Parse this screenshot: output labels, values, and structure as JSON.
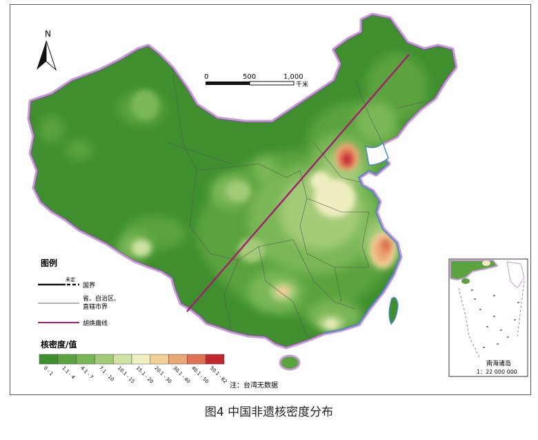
{
  "north_label": "N",
  "scale_bar": {
    "ticks": [
      "0",
      "500",
      "1,000"
    ],
    "unit": "千米"
  },
  "legend": {
    "title": "图例",
    "items": [
      {
        "label": "国界",
        "sub_label": "未定"
      },
      {
        "label": "省、自治区、",
        "label2": "直辖市界"
      },
      {
        "label": "胡焕庸线"
      }
    ]
  },
  "density_legend": {
    "title": "核密度/值",
    "classes": [
      {
        "label": "0 - 1",
        "color": "#3f8f2f"
      },
      {
        "label": "1.1 - 4",
        "color": "#5aa33e"
      },
      {
        "label": "4.1 - 7",
        "color": "#7ab756"
      },
      {
        "label": "7.1 - 10",
        "color": "#a3cb78"
      },
      {
        "label": "10.1 - 15",
        "color": "#cde2a3"
      },
      {
        "label": "15.1 - 20",
        "color": "#efeec0"
      },
      {
        "label": "20.1 - 30",
        "color": "#f3cf98"
      },
      {
        "label": "30.1 - 40",
        "color": "#eba774"
      },
      {
        "label": "40.1 - 50",
        "color": "#dd7353"
      },
      {
        "label": "50.1 - 62",
        "color": "#c1272d"
      }
    ]
  },
  "note": "注：台湾无数据",
  "inset": {
    "title": "南海诸岛",
    "scale": "1：22 000 000"
  },
  "caption": "图4  中国非遗核密度分布",
  "colors": {
    "border_glow": "#c89ad8",
    "hu_line": "#a0226e",
    "water": "#4a86c8"
  }
}
